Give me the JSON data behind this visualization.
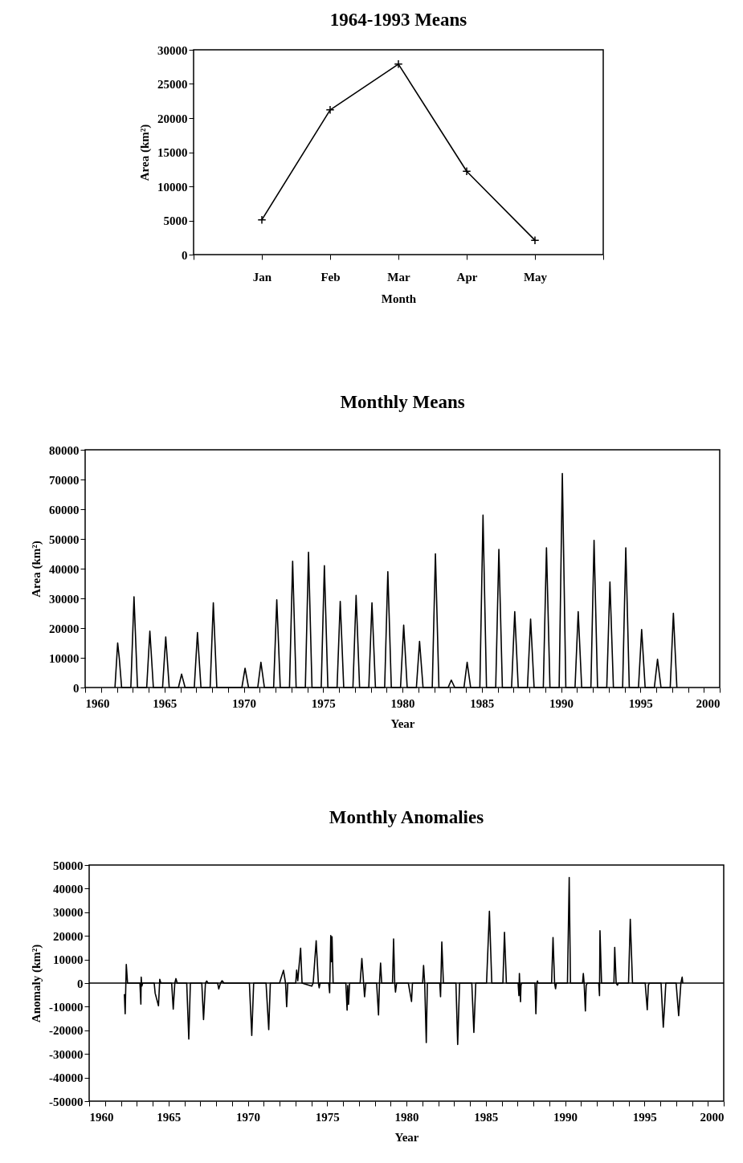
{
  "chart_data": [
    {
      "type": "line",
      "title": "1964-1993 Means",
      "xlabel": "Month",
      "ylabel": "Area (km²)",
      "categories": [
        null,
        "Jan",
        "Feb",
        "Mar",
        "Apr",
        "May",
        null
      ],
      "marker": "cross",
      "series": [
        {
          "color": "#000000",
          "values": [
            null,
            5100,
            21200,
            27900,
            12200,
            2100,
            null
          ]
        }
      ],
      "ylim": [
        0,
        30000
      ],
      "yticks": [
        0,
        5000,
        10000,
        15000,
        20000,
        25000,
        30000
      ]
    },
    {
      "type": "line",
      "title": "Monthly Means",
      "xlabel": "Year",
      "ylabel": "Area (km²)",
      "series": [
        {
          "color": "#000000",
          "x": [
            1961.88,
            1962.05,
            1962.15,
            1962.3,
            1962.88,
            1963.08,
            1963.3,
            1963.88,
            1964.08,
            1964.3,
            1964.88,
            1965.08,
            1965.3,
            1965.88,
            1966.08,
            1966.3,
            1966.88,
            1967.08,
            1967.3,
            1967.88,
            1968.08,
            1968.3,
            1969.88,
            1970.08,
            1970.3,
            1970.88,
            1971.08,
            1971.3,
            1971.88,
            1972.08,
            1972.3,
            1972.88,
            1973.08,
            1973.3,
            1973.88,
            1974.08,
            1974.3,
            1974.88,
            1975.08,
            1975.3,
            1975.88,
            1976.08,
            1976.3,
            1976.88,
            1977.08,
            1977.3,
            1977.88,
            1978.08,
            1978.3,
            1978.88,
            1979.08,
            1979.3,
            1979.88,
            1980.08,
            1980.3,
            1980.88,
            1981.08,
            1981.3,
            1981.88,
            1982.08,
            1982.3,
            1982.88,
            1983.08,
            1983.3,
            1983.88,
            1984.08,
            1984.3,
            1984.88,
            1985.08,
            1985.3,
            1985.88,
            1986.08,
            1986.3,
            1986.88,
            1987.08,
            1987.3,
            1987.88,
            1988.08,
            1988.3,
            1988.88,
            1989.08,
            1989.3,
            1989.88,
            1990.08,
            1990.3,
            1990.88,
            1991.08,
            1991.3,
            1991.88,
            1992.08,
            1992.3,
            1992.88,
            1993.08,
            1993.3,
            1993.88,
            1994.08,
            1994.3,
            1994.88,
            1995.08,
            1995.3,
            1995.88,
            1996.08,
            1996.3,
            1996.88,
            1997.08,
            1997.3
          ],
          "values": [
            0,
            15000,
            10000,
            0,
            0,
            30500,
            0,
            0,
            19000,
            0,
            0,
            17000,
            0,
            0,
            4500,
            0,
            0,
            18500,
            0,
            0,
            28500,
            0,
            0,
            6500,
            0,
            0,
            8500,
            0,
            0,
            29500,
            0,
            0,
            42500,
            0,
            0,
            45500,
            0,
            0,
            41000,
            0,
            0,
            29000,
            0,
            0,
            31000,
            0,
            0,
            28500,
            0,
            0,
            39000,
            0,
            0,
            21000,
            0,
            0,
            15500,
            0,
            0,
            45000,
            0,
            0,
            2500,
            0,
            0,
            8500,
            0,
            0,
            58000,
            0,
            0,
            46500,
            0,
            0,
            25500,
            0,
            0,
            23000,
            0,
            0,
            47000,
            0,
            0,
            72000,
            0,
            0,
            25500,
            0,
            0,
            49500,
            0,
            0,
            35500,
            0,
            0,
            47000,
            0,
            0,
            19500,
            0,
            0,
            9500,
            0,
            0,
            25000,
            0
          ]
        }
      ],
      "xlim": [
        1960,
        2000
      ],
      "xticks": [
        1960,
        {
          "value": 1961,
          "label": null
        },
        {
          "value": 1962,
          "label": null
        },
        {
          "value": 1963,
          "label": null
        },
        {
          "value": 1964,
          "label": null
        },
        1965,
        {
          "value": 1966,
          "label": null
        },
        {
          "value": 1967,
          "label": null
        },
        {
          "value": 1968,
          "label": null
        },
        {
          "value": 1969,
          "label": null
        },
        1970,
        {
          "value": 1971,
          "label": null
        },
        {
          "value": 1972,
          "label": null
        },
        {
          "value": 1973,
          "label": null
        },
        {
          "value": 1974,
          "label": null
        },
        1975,
        {
          "value": 1976,
          "label": null
        },
        {
          "value": 1977,
          "label": null
        },
        {
          "value": 1978,
          "label": null
        },
        {
          "value": 1979,
          "label": null
        },
        1980,
        {
          "value": 1981,
          "label": null
        },
        {
          "value": 1982,
          "label": null
        },
        {
          "value": 1983,
          "label": null
        },
        {
          "value": 1984,
          "label": null
        },
        1985,
        {
          "value": 1986,
          "label": null
        },
        {
          "value": 1987,
          "label": null
        },
        {
          "value": 1988,
          "label": null
        },
        {
          "value": 1989,
          "label": null
        },
        1990,
        {
          "value": 1991,
          "label": null
        },
        {
          "value": 1992,
          "label": null
        },
        {
          "value": 1993,
          "label": null
        },
        {
          "value": 1994,
          "label": null
        },
        1995,
        {
          "value": 1996,
          "label": null
        },
        {
          "value": 1997,
          "label": null
        },
        {
          "value": 1998,
          "label": null
        },
        {
          "value": 1999,
          "label": null
        },
        2000
      ],
      "ylim": [
        0,
        80000
      ],
      "yticks": [
        0,
        10000,
        20000,
        30000,
        40000,
        50000,
        60000,
        70000,
        80000
      ]
    },
    {
      "type": "line",
      "title": "Monthly Anomalies",
      "xlabel": "Year",
      "ylabel": "Anomaly (km²)",
      "series": [
        {
          "color": "#000000",
          "x": [
            1962.22,
            1962.27,
            1962.34,
            1962.42,
            1963.2,
            1963.26,
            1963.28,
            1963.32,
            1963.38,
            1964.1,
            1964.16,
            1964.37,
            1964.45,
            1964.52,
            1965.2,
            1965.3,
            1965.4,
            1965.47,
            1965.55,
            1966.15,
            1966.28,
            1966.38,
            1967.1,
            1967.21,
            1967.33,
            1967.41,
            1967.5,
            1968.1,
            1968.17,
            1968.28,
            1968.38,
            1968.5,
            1970.1,
            1970.25,
            1970.37,
            1971.15,
            1971.32,
            1971.42,
            1972.0,
            1972.25,
            1972.38,
            1972.45,
            1972.52,
            1973.02,
            1973.08,
            1973.15,
            1973.33,
            1973.42,
            1974.03,
            1974.12,
            1974.31,
            1974.45,
            1974.5,
            1974.56,
            1975.1,
            1975.16,
            1975.23,
            1975.27,
            1975.31,
            1975.38,
            1976.18,
            1976.26,
            1976.3,
            1976.35,
            1976.42,
            1977.08,
            1977.19,
            1977.3,
            1977.36,
            1977.44,
            1978.12,
            1978.24,
            1978.3,
            1978.37,
            1978.44,
            1979.12,
            1979.19,
            1979.26,
            1979.31,
            1979.38,
            1980.12,
            1980.32,
            1980.38,
            1981.02,
            1981.08,
            1981.15,
            1981.25,
            1981.32,
            1982.1,
            1982.15,
            1982.23,
            1982.33,
            1983.12,
            1983.23,
            1983.35,
            1984.12,
            1984.25,
            1984.37,
            1985.05,
            1985.23,
            1985.38,
            1986.08,
            1986.18,
            1986.3,
            1987.04,
            1987.09,
            1987.12,
            1987.19,
            1987.22,
            1987.26,
            1988.1,
            1988.16,
            1988.22,
            1988.26,
            1988.3,
            1989.15,
            1989.24,
            1989.34,
            1989.4,
            1989.45,
            1990.15,
            1990.26,
            1990.34,
            1991.1,
            1991.15,
            1991.2,
            1991.28,
            1991.33,
            1991.4,
            1992.12,
            1992.17,
            1992.2,
            1992.3,
            1993.08,
            1993.13,
            1993.22,
            1993.3,
            1993.36,
            1994.0,
            1994.11,
            1994.25,
            1995.05,
            1995.18,
            1995.25,
            1995.3,
            1996.05,
            1996.19,
            1996.27,
            1996.35,
            1997.0,
            1997.16,
            1997.3,
            1997.38,
            1997.42
          ],
          "values": [
            -4700,
            -13000,
            7900,
            0,
            0,
            -8900,
            2500,
            -1300,
            0,
            0,
            -4300,
            -9600,
            1600,
            0,
            0,
            -11000,
            0,
            1900,
            0,
            0,
            -23700,
            0,
            0,
            -15500,
            0,
            900,
            0,
            0,
            -2500,
            0,
            1000,
            0,
            0,
            -22200,
            0,
            0,
            -19700,
            0,
            0,
            5400,
            0,
            -10000,
            0,
            0,
            5500,
            1000,
            14800,
            0,
            -1300,
            0,
            17900,
            0,
            -2000,
            0,
            0,
            -4100,
            20100,
            9000,
            19600,
            0,
            0,
            -11500,
            -1000,
            -9000,
            0,
            0,
            10400,
            0,
            -5800,
            0,
            0,
            -13500,
            0,
            8500,
            0,
            0,
            18700,
            0,
            -3800,
            0,
            0,
            -7800,
            0,
            0,
            7500,
            0,
            -25200,
            0,
            0,
            -5800,
            17400,
            0,
            0,
            -26000,
            0,
            0,
            -20900,
            0,
            0,
            30400,
            0,
            0,
            21500,
            0,
            0,
            -5300,
            4100,
            -7900,
            -1000,
            0,
            0,
            -13000,
            0,
            900,
            0,
            0,
            19300,
            0,
            -2400,
            0,
            0,
            44700,
            0,
            0,
            4100,
            0,
            -11800,
            -1000,
            0,
            0,
            -5300,
            22200,
            0,
            0,
            15100,
            0,
            -900,
            0,
            0,
            27000,
            0,
            0,
            -11300,
            -1000,
            0,
            0,
            -18700,
            -10000,
            0,
            0,
            -13800,
            0,
            2500,
            0
          ]
        }
      ],
      "ref_lines": [
        {
          "axis": "y",
          "value": 0,
          "color": "#000000"
        }
      ],
      "xlim": [
        1960,
        2000
      ],
      "xticks": [
        1960,
        {
          "value": 1961,
          "label": null
        },
        {
          "value": 1962,
          "label": null
        },
        {
          "value": 1963,
          "label": null
        },
        {
          "value": 1964,
          "label": null
        },
        1965,
        {
          "value": 1966,
          "label": null
        },
        {
          "value": 1967,
          "label": null
        },
        {
          "value": 1968,
          "label": null
        },
        {
          "value": 1969,
          "label": null
        },
        1970,
        {
          "value": 1971,
          "label": null
        },
        {
          "value": 1972,
          "label": null
        },
        {
          "value": 1973,
          "label": null
        },
        {
          "value": 1974,
          "label": null
        },
        1975,
        {
          "value": 1976,
          "label": null
        },
        {
          "value": 1977,
          "label": null
        },
        {
          "value": 1978,
          "label": null
        },
        {
          "value": 1979,
          "label": null
        },
        1980,
        {
          "value": 1981,
          "label": null
        },
        {
          "value": 1982,
          "label": null
        },
        {
          "value": 1983,
          "label": null
        },
        {
          "value": 1984,
          "label": null
        },
        1985,
        {
          "value": 1986,
          "label": null
        },
        {
          "value": 1987,
          "label": null
        },
        {
          "value": 1988,
          "label": null
        },
        {
          "value": 1989,
          "label": null
        },
        1990,
        {
          "value": 1991,
          "label": null
        },
        {
          "value": 1992,
          "label": null
        },
        {
          "value": 1993,
          "label": null
        },
        {
          "value": 1994,
          "label": null
        },
        1995,
        {
          "value": 1996,
          "label": null
        },
        {
          "value": 1997,
          "label": null
        },
        {
          "value": 1998,
          "label": null
        },
        {
          "value": 1999,
          "label": null
        },
        2000
      ],
      "ylim": [
        -50000,
        50000
      ],
      "yticks": [
        -50000,
        -40000,
        -30000,
        -20000,
        -10000,
        0,
        10000,
        20000,
        30000,
        40000,
        50000
      ]
    }
  ]
}
